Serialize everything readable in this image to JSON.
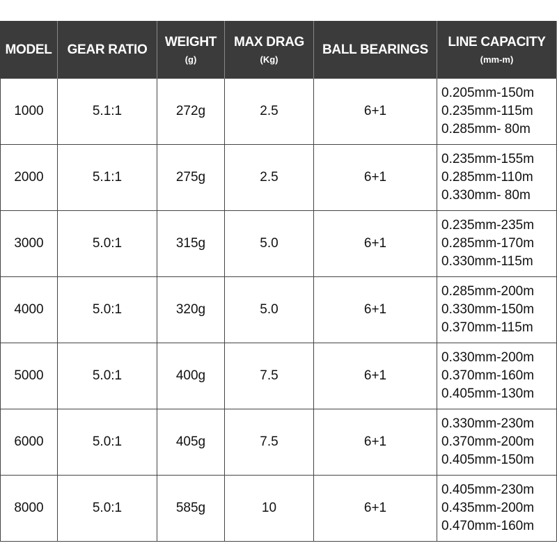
{
  "table": {
    "header": [
      {
        "title": "MODEL"
      },
      {
        "title": "GEAR RATIO"
      },
      {
        "title": "WEIGHT",
        "unit": "(g)"
      },
      {
        "title": "MAX DRAG",
        "unit": "(Kg)"
      },
      {
        "title": "BALL BEARINGS"
      },
      {
        "title": "LINE CAPACITY",
        "unit": "(mm-m)"
      }
    ],
    "rows": [
      [
        "1000",
        "5.1:1",
        "272g",
        "2.5",
        "6+1",
        [
          "0.205mm-150m",
          "0.235mm-115m",
          "0.285mm- 80m"
        ]
      ],
      [
        "2000",
        "5.1:1",
        "275g",
        "2.5",
        "6+1",
        [
          "0.235mm-155m",
          "0.285mm-110m",
          "0.330mm- 80m"
        ]
      ],
      [
        "3000",
        "5.0:1",
        "315g",
        "5.0",
        "6+1",
        [
          "0.235mm-235m",
          "0.285mm-170m",
          "0.330mm-115m"
        ]
      ],
      [
        "4000",
        "5.0:1",
        "320g",
        "5.0",
        "6+1",
        [
          "0.285mm-200m",
          "0.330mm-150m",
          "0.370mm-115m"
        ]
      ],
      [
        "5000",
        "5.0:1",
        "400g",
        "7.5",
        "6+1",
        [
          "0.330mm-200m",
          "0.370mm-160m",
          "0.405mm-130m"
        ]
      ],
      [
        "6000",
        "5.0:1",
        "405g",
        "7.5",
        "6+1",
        [
          "0.330mm-230m",
          "0.370mm-200m",
          "0.405mm-150m"
        ]
      ],
      [
        "8000",
        "5.0:1",
        "585g",
        "10",
        "6+1",
        [
          "0.405mm-230m",
          "0.435mm-200m",
          "0.470mm-160m"
        ]
      ]
    ]
  }
}
